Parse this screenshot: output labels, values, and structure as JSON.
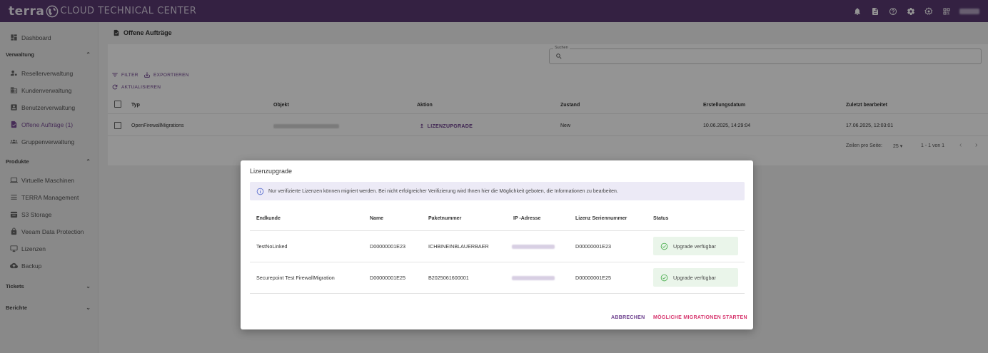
{
  "app": {
    "brand_terra": "terra",
    "brand_rest": "CLOUD TECHNICAL CENTER"
  },
  "header_icons": [
    "bell-icon",
    "document-icon",
    "help-icon",
    "gear-icon",
    "settings-cog-icon",
    "qr-icon"
  ],
  "sidebar": {
    "dashboard": "Dashboard",
    "sections": {
      "verwaltung": "Verwaltung",
      "produkte": "Produkte",
      "tickets": "Tickets",
      "berichte": "Berichte"
    },
    "verwaltung_items": [
      "Resellerverwaltung",
      "Kundenverwaltung",
      "Benutzerverwaltung",
      "Offene Aufträge (1)",
      "Gruppenverwaltung"
    ],
    "produkte_items": [
      "Virtuelle Maschinen",
      "TERRA Management",
      "S3 Storage",
      "Veeam Data Protection",
      "Lizenzen",
      "Backup"
    ]
  },
  "main": {
    "title": "Offene Aufträge",
    "search_label": "Suchen",
    "filter_label": "FILTER",
    "export_label": "EXPORTIEREN",
    "refresh_label": "AKTUALISIEREN",
    "columns": [
      "Typ",
      "Objekt",
      "Aktion",
      "Zustand",
      "Erstellungsdatum",
      "Zuletzt bearbeitet"
    ],
    "row": {
      "typ": "OpenFirewallMigrations",
      "aktion": "LIZENZUPGRADE",
      "zustand": "New",
      "erstellt": "10.06.2025, 14:29:04",
      "bearbeitet": "17.06.2025, 12:03:01"
    },
    "pager": {
      "rows_per_page_label": "Zeilen pro Seite:",
      "rows_per_page": "25",
      "range": "1 - 1 von 1"
    }
  },
  "modal": {
    "title": "Lizenzupgrade",
    "info": "Nur verifizierte Lizenzen können migriert werden. Bei nicht erfolgreicher Verifizierung wird Ihnen hier die Möglichkeit geboten, die Informationen zu bearbeiten.",
    "columns": [
      "Endkunde",
      "Name",
      "Paketnummer",
      "IP -Adresse",
      "Lizenz Seriennummer",
      "Status"
    ],
    "rows": [
      {
        "endkunde": "TestNoLinked",
        "name": "D00000001E23",
        "paket": "ICHBINEINBLAUERBAER",
        "serial": "D00000001E23",
        "status": "Upgrade verfügbar"
      },
      {
        "endkunde": "Securepoint Test FirewallMigration",
        "name": "D00000001E25",
        "paket": "B2025061600001",
        "serial": "D00000001E25",
        "status": "Upgrade verfügbar"
      }
    ],
    "cancel": "ABBRECHEN",
    "start": "MÖGLICHE MIGRATIONEN STARTEN",
    "colors": {
      "accent": "#6b3d8c",
      "danger": "#d6336c",
      "success": "#4caf50"
    }
  }
}
